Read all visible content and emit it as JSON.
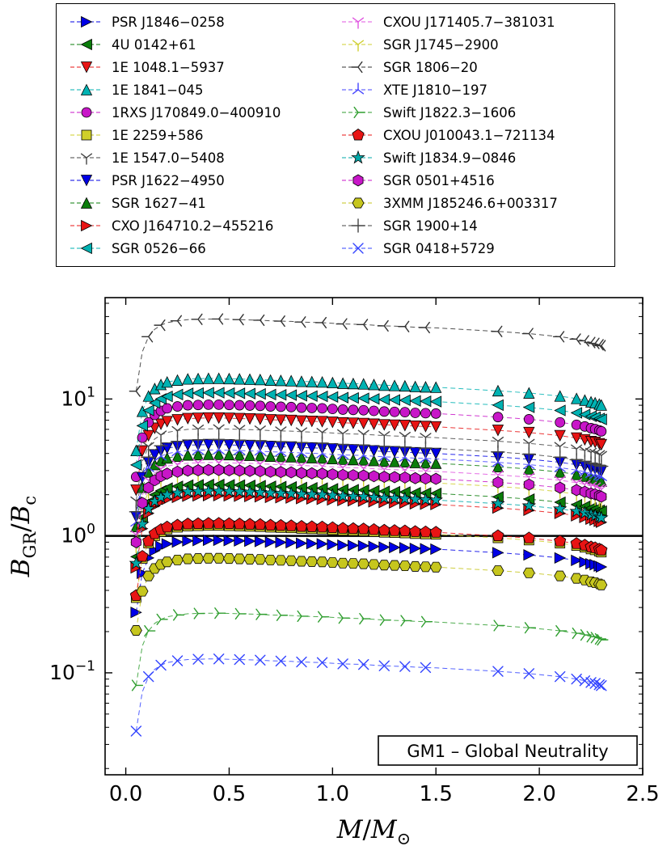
{
  "figure": {
    "background": "#ffffff"
  },
  "annotation": {
    "label": "GM1 – Global Neutrality"
  },
  "chart_data": {
    "type": "line",
    "title": "",
    "xlabel_rich": [
      {
        "t": "M",
        "i": true
      },
      {
        "t": "/"
      },
      {
        "t": "M",
        "i": true
      },
      {
        "t": "⊙",
        "sub": true
      }
    ],
    "ylabel_rich": [
      {
        "t": "B",
        "i": true
      },
      {
        "t": "GR",
        "sub": true
      },
      {
        "t": "/"
      },
      {
        "t": "B",
        "i": true
      },
      {
        "t": "c",
        "sub": true
      }
    ],
    "x_ticks": [
      0.0,
      0.5,
      1.0,
      1.5,
      2.0,
      2.5
    ],
    "y_ticks": [
      {
        "base": "10",
        "exp": "1",
        "v": 10
      },
      {
        "base": "10",
        "exp": "0",
        "v": 1
      },
      {
        "base": "10",
        "exp": "−1",
        "v": 0.1
      }
    ],
    "xlim": [
      -0.1,
      2.5
    ],
    "ylim": [
      0.018,
      55
    ],
    "y_scale": "log",
    "hline": 1.0,
    "legend_position": "top-outside",
    "grid": false,
    "annotation": "GM1 – Global Neutrality",
    "x": [
      0.05,
      0.08,
      0.11,
      0.14,
      0.17,
      0.2,
      0.25,
      0.3,
      0.35,
      0.4,
      0.45,
      0.5,
      0.55,
      0.6,
      0.65,
      0.7,
      0.75,
      0.8,
      0.85,
      0.9,
      0.95,
      1.0,
      1.05,
      1.1,
      1.15,
      1.2,
      1.25,
      1.3,
      1.35,
      1.4,
      1.45,
      1.5,
      1.8,
      1.95,
      2.1,
      2.18,
      2.22,
      2.25,
      2.27,
      2.29,
      2.3
    ],
    "shape": [
      0.3,
      0.58,
      0.75,
      0.85,
      0.91,
      0.95,
      0.98,
      1.0,
      1.005,
      1.01,
      1.01,
      1.005,
      1.0,
      0.995,
      0.99,
      0.98,
      0.975,
      0.97,
      0.96,
      0.955,
      0.95,
      0.94,
      0.93,
      0.925,
      0.92,
      0.91,
      0.9,
      0.895,
      0.89,
      0.88,
      0.875,
      0.87,
      0.82,
      0.79,
      0.75,
      0.72,
      0.7,
      0.68,
      0.67,
      0.655,
      0.645
    ],
    "series": [
      {
        "label": "PSR J1846−0258",
        "marker": ">",
        "color": "#0000e6",
        "peak": 0.92,
        "thin": false
      },
      {
        "label": "4U 0142+61",
        "marker": "<",
        "color": "#0b7d0b",
        "peak": 2.35,
        "thin": false
      },
      {
        "label": "1E 1048.1−5937",
        "marker": "v",
        "color": "#e81414",
        "peak": 7.2,
        "thin": false
      },
      {
        "label": "1E 1841−045",
        "marker": "^",
        "color": "#00b2b2",
        "peak": 14.0,
        "thin": false
      },
      {
        "label": "1RXS J170849.0−400910",
        "marker": "o",
        "color": "#c816c8",
        "peak": 9.0,
        "thin": false
      },
      {
        "label": "1E 2259+586",
        "marker": "s",
        "color": "#cfcf2a",
        "peak": 1.18,
        "thin": false
      },
      {
        "label": "1E 1547.0−5408",
        "marker": "1",
        "color": "#444444",
        "peak": 6.0,
        "thin": true
      },
      {
        "label": "PSR J1622−4950",
        "marker": "v",
        "color": "#0000e6",
        "peak": 4.6,
        "thin": false
      },
      {
        "label": "SGR 1627−41",
        "marker": "^",
        "color": "#0b7d0b",
        "peak": 3.9,
        "thin": false
      },
      {
        "label": "CXO J164710.2−455216",
        "marker": ">",
        "color": "#e81414",
        "peak": 1.95,
        "thin": false
      },
      {
        "label": "SGR 0526−66",
        "marker": "<",
        "color": "#00b2b2",
        "peak": 11.0,
        "thin": false
      },
      {
        "label": "CXOU J171405.7−381031",
        "marker": "1",
        "color": "#e055e0",
        "peak": 3.4,
        "thin": true
      },
      {
        "label": "SGR J1745−2900",
        "marker": "1",
        "color": "#cfcf30",
        "peak": 2.8,
        "thin": true
      },
      {
        "label": "SGR 1806−20",
        "marker": "3",
        "color": "#333333",
        "peak": 38.0,
        "thin": true
      },
      {
        "label": "XTE J1810−197",
        "marker": "2",
        "color": "#4444ff",
        "peak": 4.2,
        "thin": true
      },
      {
        "label": "Swift J1822.3−1606",
        "marker": "4",
        "color": "#2f9e2f",
        "peak": 0.27,
        "thin": true
      },
      {
        "label": "CXOU J010043.1−721134",
        "marker": "p",
        "color": "#e81414",
        "peak": 1.22,
        "thin": false
      },
      {
        "label": "Swift J1834.9−0846",
        "marker": "*",
        "color": "#00a8a8",
        "peak": 2.1,
        "thin": false
      },
      {
        "label": "SGR 0501+4516",
        "marker": "h",
        "color": "#c816c8",
        "peak": 3.0,
        "thin": false
      },
      {
        "label": "3XMM J185246.6+003317",
        "marker": "H",
        "color": "#c6c61e",
        "peak": 0.68,
        "thin": false
      },
      {
        "label": "SGR 1900+14",
        "marker": "+",
        "color": "#444444",
        "peak": 5.0,
        "thin": true
      },
      {
        "label": "SGR 0418+5729",
        "marker": "x",
        "color": "#3344ff",
        "peak": 0.125,
        "thin": true
      }
    ]
  }
}
